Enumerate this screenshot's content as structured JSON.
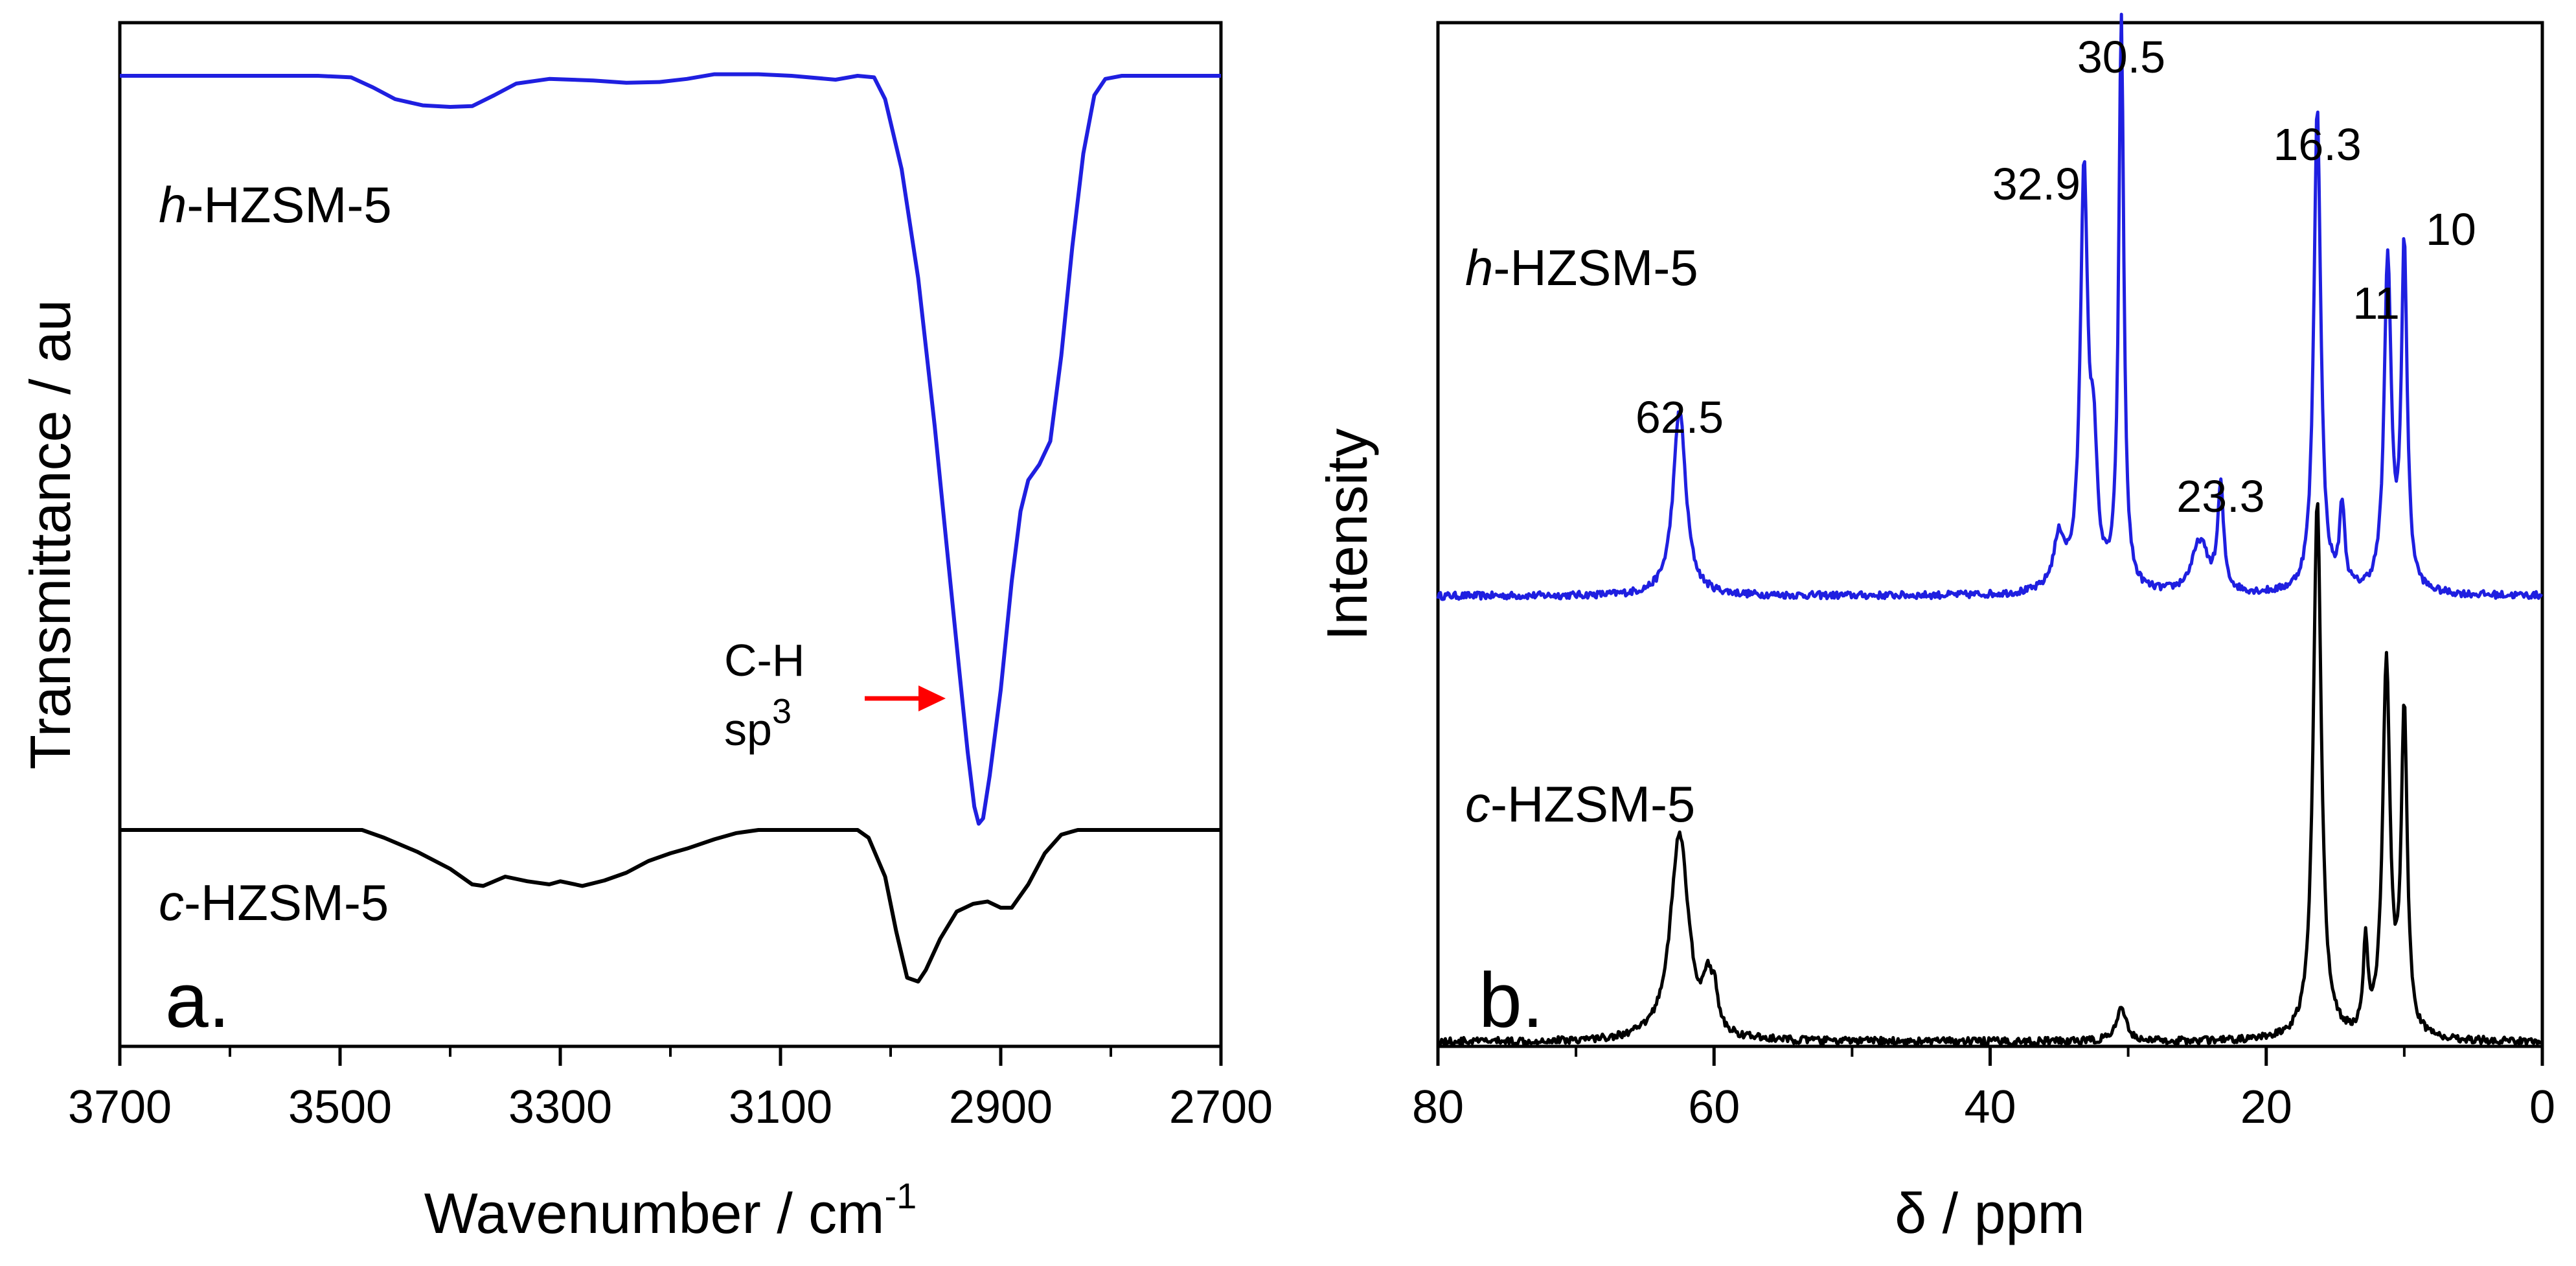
{
  "chart_data": [
    {
      "type": "line",
      "panel_label": "a.",
      "title": "",
      "xlabel_main": "Wavenumber / cm",
      "xlabel_sup": "-1",
      "ylabel": "Transmittance / au",
      "xlim": [
        3700,
        2700
      ],
      "xticks": [
        "3700",
        "3500",
        "3300",
        "3100",
        "2900",
        "2700"
      ],
      "grid": false,
      "series": [
        {
          "name": "h-HZSM-5",
          "name_prefix": "h",
          "name_suffix": "-HZSM-5",
          "color": "#1f1fe0",
          "y_offset": 0.0,
          "points": [
            [
              3700,
              0.0
            ],
            [
              3520,
              0.0
            ],
            [
              3490,
              -0.002
            ],
            [
              3470,
              -0.015
            ],
            [
              3450,
              -0.03
            ],
            [
              3425,
              -0.038
            ],
            [
              3400,
              -0.04
            ],
            [
              3380,
              -0.039
            ],
            [
              3360,
              -0.025
            ],
            [
              3340,
              -0.01
            ],
            [
              3310,
              -0.004
            ],
            [
              3270,
              -0.006
            ],
            [
              3240,
              -0.009
            ],
            [
              3210,
              -0.008
            ],
            [
              3185,
              -0.004
            ],
            [
              3160,
              0.002
            ],
            [
              3120,
              0.002
            ],
            [
              3090,
              0.0
            ],
            [
              3050,
              -0.005
            ],
            [
              3030,
              0.0
            ],
            [
              3015,
              -0.002
            ],
            [
              3005,
              -0.03
            ],
            [
              2990,
              -0.12
            ],
            [
              2975,
              -0.26
            ],
            [
              2960,
              -0.45
            ],
            [
              2948,
              -0.62
            ],
            [
              2938,
              -0.76
            ],
            [
              2930,
              -0.87
            ],
            [
              2924,
              -0.94
            ],
            [
              2920,
              -0.962
            ],
            [
              2916,
              -0.955
            ],
            [
              2910,
              -0.9
            ],
            [
              2900,
              -0.79
            ],
            [
              2890,
              -0.65
            ],
            [
              2882,
              -0.56
            ],
            [
              2875,
              -0.52
            ],
            [
              2865,
              -0.5
            ],
            [
              2855,
              -0.47
            ],
            [
              2845,
              -0.36
            ],
            [
              2835,
              -0.22
            ],
            [
              2825,
              -0.1
            ],
            [
              2815,
              -0.025
            ],
            [
              2805,
              -0.004
            ],
            [
              2790,
              0.0
            ],
            [
              2700,
              0.0
            ]
          ]
        },
        {
          "name": "c-HZSM-5",
          "name_prefix": "c",
          "name_suffix": "-HZSM-5",
          "color": "#000000",
          "y_offset": -0.97,
          "points": [
            [
              3700,
              0.0
            ],
            [
              3480,
              0.0
            ],
            [
              3460,
              -0.01
            ],
            [
              3430,
              -0.028
            ],
            [
              3400,
              -0.05
            ],
            [
              3380,
              -0.07
            ],
            [
              3370,
              -0.072
            ],
            [
              3350,
              -0.06
            ],
            [
              3330,
              -0.066
            ],
            [
              3310,
              -0.07
            ],
            [
              3300,
              -0.066
            ],
            [
              3280,
              -0.072
            ],
            [
              3260,
              -0.065
            ],
            [
              3240,
              -0.055
            ],
            [
              3220,
              -0.04
            ],
            [
              3200,
              -0.03
            ],
            [
              3185,
              -0.024
            ],
            [
              3160,
              -0.012
            ],
            [
              3140,
              -0.004
            ],
            [
              3120,
              0.0
            ],
            [
              3030,
              0.0
            ],
            [
              3020,
              -0.01
            ],
            [
              3005,
              -0.06
            ],
            [
              2995,
              -0.13
            ],
            [
              2985,
              -0.19
            ],
            [
              2975,
              -0.195
            ],
            [
              2968,
              -0.18
            ],
            [
              2955,
              -0.14
            ],
            [
              2940,
              -0.105
            ],
            [
              2925,
              -0.095
            ],
            [
              2912,
              -0.092
            ],
            [
              2900,
              -0.1
            ],
            [
              2890,
              -0.1
            ],
            [
              2875,
              -0.07
            ],
            [
              2860,
              -0.03
            ],
            [
              2845,
              -0.006
            ],
            [
              2830,
              0.0
            ],
            [
              2700,
              0.0
            ]
          ]
        }
      ],
      "annotations": [
        {
          "line1": "C-H",
          "line2_main": "sp",
          "line2_sup": "3",
          "arrow_color": "#ff0000"
        }
      ]
    },
    {
      "type": "line",
      "panel_label": "b.",
      "title": "",
      "xlabel": "δ / ppm",
      "ylabel": "Intensity",
      "xlim": [
        80,
        0
      ],
      "xticks": [
        "80",
        "60",
        "40",
        "20",
        "0"
      ],
      "grid": false,
      "series": [
        {
          "name": "h-HZSM-5",
          "name_prefix": "h",
          "name_suffix": "-HZSM-5",
          "color": "#1f1fe0",
          "baseline": 0.43,
          "peaks": [
            [
              62.5,
              0.18,
              0.55
            ],
            [
              35.0,
              0.05,
              0.5
            ],
            [
              33.2,
              0.4,
              0.32
            ],
            [
              32.5,
              0.12,
              0.3
            ],
            [
              30.5,
              0.55,
              0.22
            ],
            [
              24.8,
              0.05,
              0.7
            ],
            [
              23.3,
              0.1,
              0.25
            ],
            [
              16.3,
              0.47,
              0.3
            ],
            [
              14.5,
              0.08,
              0.22
            ],
            [
              11.2,
              0.32,
              0.3
            ],
            [
              10.0,
              0.33,
              0.25
            ]
          ],
          "labels": [
            {
              "text": "62.5",
              "x": 62.5
            },
            {
              "text": "32.9",
              "x": 32.9
            },
            {
              "text": "30.5",
              "x": 30.5
            },
            {
              "text": "23.3",
              "x": 23.3
            },
            {
              "text": "16.3",
              "x": 16.3
            },
            {
              "text": "11",
              "x": 11
            },
            {
              "text": "10",
              "x": 10
            }
          ]
        },
        {
          "name": "c-HZSM-5",
          "name_prefix": "c",
          "name_suffix": "-HZSM-5",
          "color": "#000000",
          "baseline": 0.0,
          "peaks": [
            [
              62.5,
              0.2,
              0.8
            ],
            [
              60.5,
              0.04,
              0.3
            ],
            [
              60.0,
              0.04,
              0.3
            ],
            [
              30.5,
              0.03,
              0.45
            ],
            [
              16.3,
              0.52,
              0.35
            ],
            [
              12.8,
              0.09,
              0.18
            ],
            [
              11.3,
              0.36,
              0.32
            ],
            [
              10.0,
              0.31,
              0.26
            ]
          ]
        }
      ]
    }
  ]
}
